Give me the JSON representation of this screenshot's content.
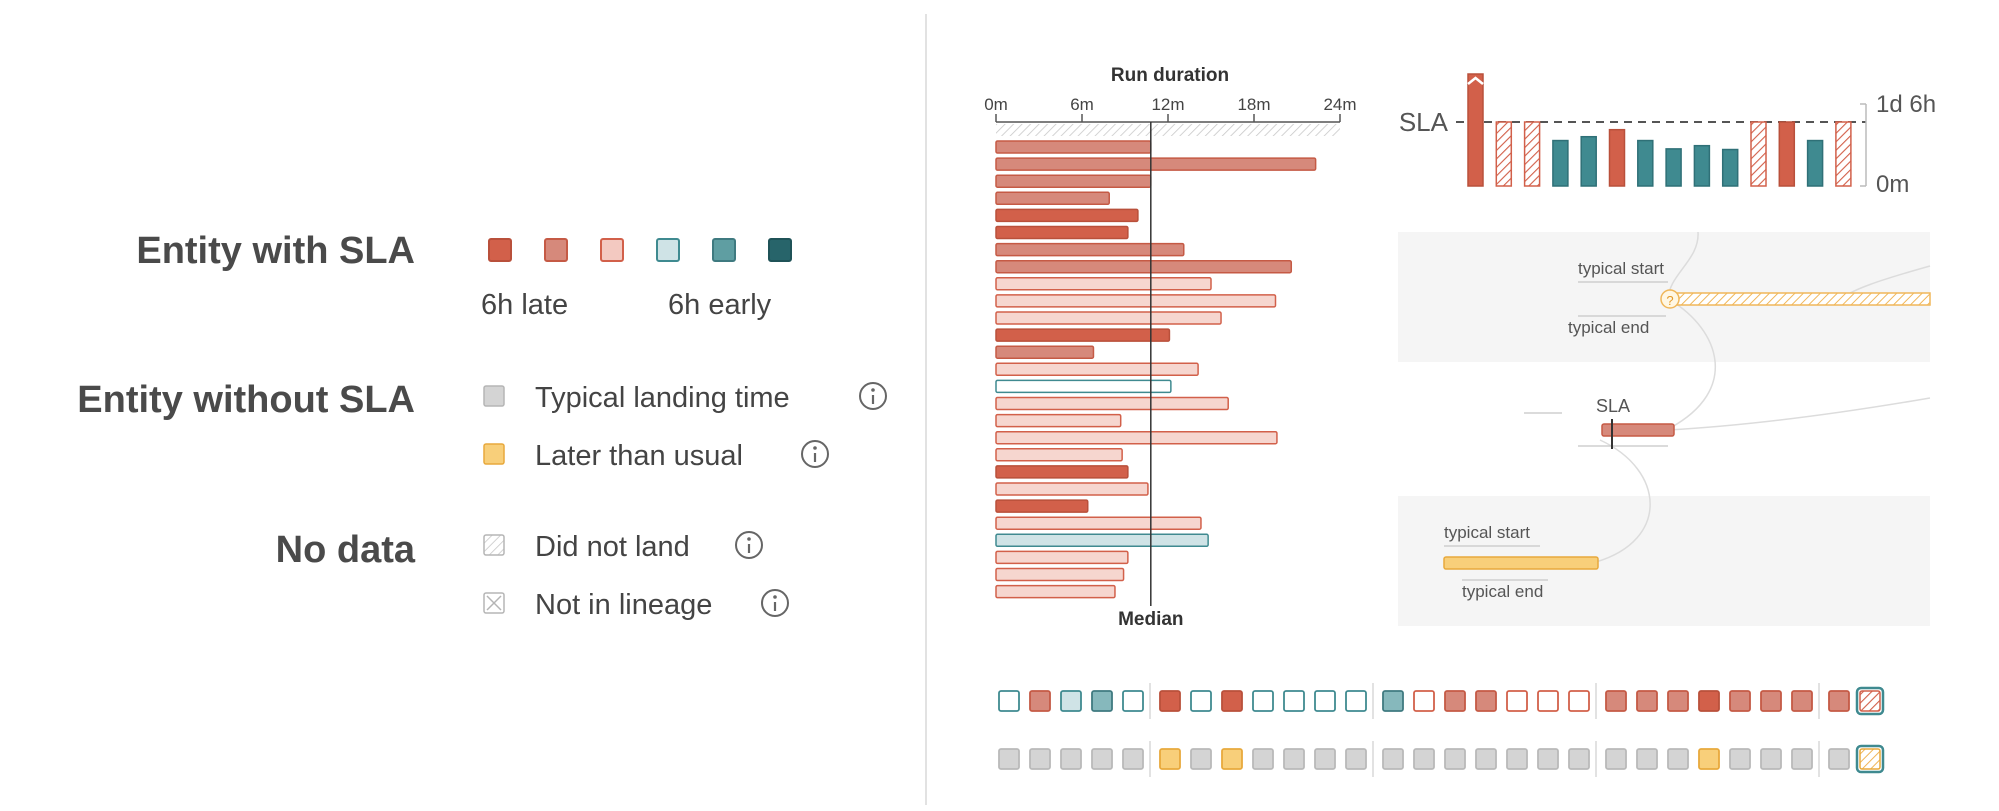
{
  "legend": {
    "sla_heading": "Entity with SLA",
    "sla_swatches": [
      "#d2604a",
      "#d6897b",
      "#f3c9c1",
      "#cfe3e6",
      "#5f9ea2",
      "#27646a"
    ],
    "late_label": "6h late",
    "early_label": "6h early",
    "no_sla_heading": "Entity without SLA",
    "typical_label": "Typical landing time",
    "later_label": "Later than usual",
    "nodata_heading": "No data",
    "did_not_land_label": "Did not land",
    "not_in_lineage_label": "Not in lineage"
  },
  "duration_chart": {
    "title": "Run duration",
    "ticks": [
      "0m",
      "6m",
      "12m",
      "18m",
      "24m"
    ],
    "tick_values": [
      0,
      6,
      12,
      18,
      24
    ],
    "median_label": "Median",
    "median_value": 10.8,
    "bars": [
      {
        "v": 10.8,
        "c": "mid"
      },
      {
        "v": 22.3,
        "c": "mid"
      },
      {
        "v": 10.8,
        "c": "mid"
      },
      {
        "v": 7.9,
        "c": "mid"
      },
      {
        "v": 9.9,
        "c": "dark"
      },
      {
        "v": 9.2,
        "c": "dark"
      },
      {
        "v": 13.1,
        "c": "mid"
      },
      {
        "v": 20.6,
        "c": "mid"
      },
      {
        "v": 15.0,
        "c": "light"
      },
      {
        "v": 19.5,
        "c": "light"
      },
      {
        "v": 15.7,
        "c": "light"
      },
      {
        "v": 12.1,
        "c": "dark"
      },
      {
        "v": 6.8,
        "c": "mid"
      },
      {
        "v": 14.1,
        "c": "light"
      },
      {
        "v": 12.2,
        "c": "teal-outline"
      },
      {
        "v": 16.2,
        "c": "light"
      },
      {
        "v": 8.7,
        "c": "light"
      },
      {
        "v": 19.6,
        "c": "light"
      },
      {
        "v": 8.8,
        "c": "light"
      },
      {
        "v": 9.2,
        "c": "dark"
      },
      {
        "v": 10.6,
        "c": "light"
      },
      {
        "v": 6.4,
        "c": "dark"
      },
      {
        "v": 14.3,
        "c": "light"
      },
      {
        "v": 14.8,
        "c": "teal-light"
      },
      {
        "v": 9.2,
        "c": "light"
      },
      {
        "v": 8.9,
        "c": "light"
      },
      {
        "v": 8.3,
        "c": "light"
      }
    ]
  },
  "sla_chart": {
    "sla_label": "SLA",
    "top_label": "1d 6h",
    "bottom_label": "0m",
    "bars": [
      {
        "v": 1.6,
        "c": "dark",
        "over": true
      },
      {
        "v": 1.0,
        "c": "hatch"
      },
      {
        "v": 1.0,
        "c": "hatch"
      },
      {
        "v": 0.71,
        "c": "teal"
      },
      {
        "v": 0.77,
        "c": "teal"
      },
      {
        "v": 0.88,
        "c": "dark"
      },
      {
        "v": 0.71,
        "c": "teal"
      },
      {
        "v": 0.58,
        "c": "teal"
      },
      {
        "v": 0.63,
        "c": "teal"
      },
      {
        "v": 0.57,
        "c": "teal"
      },
      {
        "v": 1.0,
        "c": "hatch"
      },
      {
        "v": 1.0,
        "c": "dark"
      },
      {
        "v": 0.71,
        "c": "teal"
      },
      {
        "v": 1.0,
        "c": "hatch"
      }
    ]
  },
  "lineage": {
    "top_typical_start": "typical start",
    "top_typical_end": "typical end",
    "question_mark": "?",
    "mid_sla": "SLA",
    "bottom_typical_start": "typical start",
    "bottom_typical_end": "typical end"
  },
  "strips": {
    "row1": [
      [
        "teal-outline",
        "mid",
        "teal-light",
        "teal-mid",
        "teal-outline"
      ],
      [
        "dark",
        "teal-outline",
        "dark",
        "teal-outline",
        "teal-outline",
        "teal-outline",
        "teal-outline"
      ],
      [
        "teal-mid",
        "red-outline",
        "mid",
        "mid",
        "red-outline",
        "red-outline",
        "red-outline"
      ],
      [
        "mid",
        "mid",
        "mid",
        "dark",
        "mid",
        "mid",
        "mid"
      ],
      [
        "mid",
        "selected-hatch"
      ]
    ],
    "row2": [
      [
        "gray",
        "gray",
        "gray",
        "gray",
        "gray"
      ],
      [
        "yellow",
        "gray",
        "yellow",
        "gray",
        "gray",
        "gray",
        "gray"
      ],
      [
        "gray",
        "gray",
        "gray",
        "gray",
        "gray",
        "gray",
        "gray"
      ],
      [
        "gray",
        "gray",
        "gray",
        "yellow",
        "gray",
        "gray",
        "gray"
      ],
      [
        "gray",
        "selected-hatch-yellow"
      ]
    ]
  }
}
